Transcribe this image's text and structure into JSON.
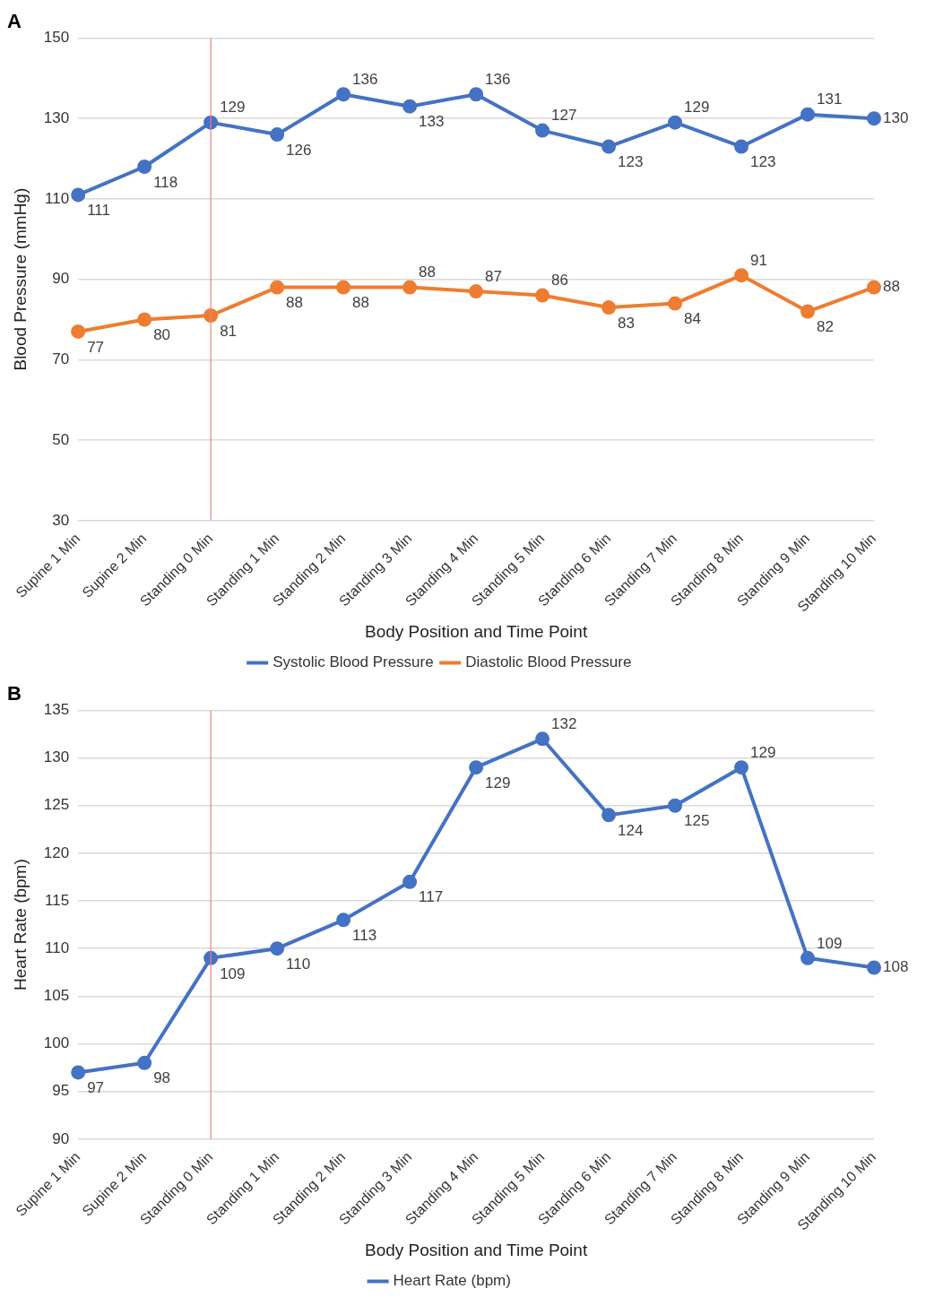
{
  "chart_data": [
    {
      "type": "line",
      "title": "A",
      "xlabel": "Body Position and Time Point",
      "ylabel": "Blood Pressure (mmHg)",
      "categories": [
        "Supine 1 Min",
        "Supine 2 Min",
        "Standing 0 Min",
        "Standing 1 Min",
        "Standing 2 Min",
        "Standing 3 Min",
        "Standing 4 Min",
        "Standing 5 Min",
        "Standing 6 Min",
        "Standing 7 Min",
        "Standing 8 Min",
        "Standing 9 Min",
        "Standing 10 Min"
      ],
      "series": [
        {
          "name": "Systolic Blood Pressure",
          "color": "#4472c4",
          "values": [
            111,
            118,
            129,
            126,
            136,
            133,
            136,
            127,
            123,
            129,
            123,
            131,
            130
          ]
        },
        {
          "name": "Diastolic Blood Pressure",
          "color": "#ed7d31",
          "values": [
            77,
            80,
            81,
            88,
            88,
            88,
            87,
            86,
            83,
            84,
            91,
            82,
            88
          ]
        }
      ],
      "ylim": [
        30,
        150
      ],
      "yticks": [
        30,
        50,
        70,
        90,
        110,
        130,
        150
      ],
      "grid": "y",
      "legend": "bottom",
      "marker": "circle",
      "line_style": "solid",
      "data_labels": true,
      "ref_lines": [
        {
          "axis": "x",
          "value": "Standing 0 Min",
          "color": "#f08080"
        }
      ]
    },
    {
      "type": "line",
      "title": "B",
      "xlabel": "Body Position and Time Point",
      "ylabel": "Heart Rate (bpm)",
      "categories": [
        "Supine 1 Min",
        "Supine 2 Min",
        "Standing 0 Min",
        "Standing 1 Min",
        "Standing 2 Min",
        "Standing 3 Min",
        "Standing 4 Min",
        "Standing 5 Min",
        "Standing 6 Min",
        "Standing 7 Min",
        "Standing 8 Min",
        "Standing 9 Min",
        "Standing 10 Min"
      ],
      "series": [
        {
          "name": "Heart Rate (bpm)",
          "color": "#4472c4",
          "values": [
            97,
            98,
            109,
            110,
            113,
            117,
            129,
            132,
            124,
            125,
            129,
            109,
            108
          ]
        }
      ],
      "ylim": [
        90,
        135
      ],
      "yticks": [
        90,
        95,
        100,
        105,
        110,
        115,
        120,
        125,
        130,
        135
      ],
      "grid": "y",
      "legend": "bottom",
      "marker": "circle",
      "line_style": "solid",
      "data_labels": true,
      "ref_lines": [
        {
          "axis": "x",
          "value": "Standing 0 Min",
          "color": "#f08080"
        }
      ]
    }
  ]
}
